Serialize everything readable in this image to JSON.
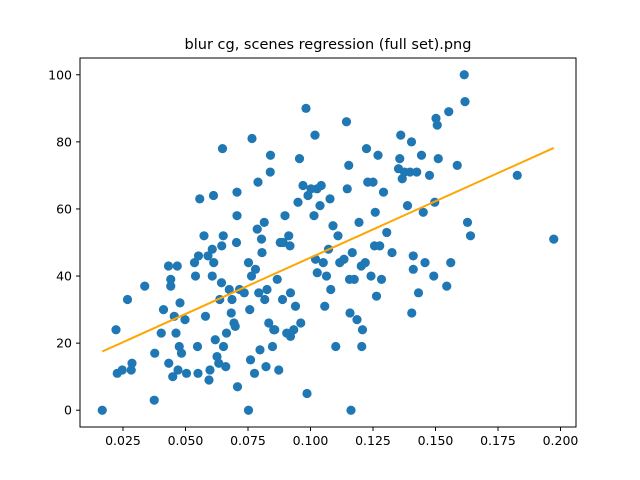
{
  "chart_data": {
    "type": "scatter",
    "title": "blur cg, scenes regression (full set).png",
    "xlabel": "",
    "ylabel": "",
    "xlim": [
      0.0078,
      0.2062
    ],
    "ylim": [
      -5,
      105
    ],
    "x_ticks": [
      "0.025",
      "0.050",
      "0.075",
      "0.100",
      "0.125",
      "0.150",
      "0.175",
      "0.200"
    ],
    "y_ticks": [
      "0",
      "20",
      "40",
      "60",
      "80",
      "100"
    ],
    "grid": false,
    "legend": "none",
    "colors": {
      "points": "#1f77b4",
      "fit": "#ffa500"
    },
    "regression_line": {
      "x": [
        0.0167,
        0.1973
      ],
      "y": [
        17.5,
        78.2
      ]
    },
    "points": [
      {
        "x": 0.0167,
        "y": 0.0
      },
      {
        "x": 0.0222,
        "y": 24.0
      },
      {
        "x": 0.0227,
        "y": 11.0
      },
      {
        "x": 0.0247,
        "y": 12.0
      },
      {
        "x": 0.0268,
        "y": 33.0
      },
      {
        "x": 0.0283,
        "y": 12.0
      },
      {
        "x": 0.0286,
        "y": 14.0
      },
      {
        "x": 0.0337,
        "y": 37.0
      },
      {
        "x": 0.0375,
        "y": 3.0
      },
      {
        "x": 0.0377,
        "y": 17.0
      },
      {
        "x": 0.0403,
        "y": 23.0
      },
      {
        "x": 0.0412,
        "y": 30.0
      },
      {
        "x": 0.0432,
        "y": 43.0
      },
      {
        "x": 0.0433,
        "y": 14.0
      },
      {
        "x": 0.0441,
        "y": 39.0
      },
      {
        "x": 0.0441,
        "y": 37.0
      },
      {
        "x": 0.0449,
        "y": 10.0
      },
      {
        "x": 0.0455,
        "y": 28.0
      },
      {
        "x": 0.0462,
        "y": 23.0
      },
      {
        "x": 0.0467,
        "y": 43.0
      },
      {
        "x": 0.047,
        "y": 12.0
      },
      {
        "x": 0.0475,
        "y": 19.0
      },
      {
        "x": 0.0478,
        "y": 32.0
      },
      {
        "x": 0.0484,
        "y": 17.0
      },
      {
        "x": 0.0498,
        "y": 27.0
      },
      {
        "x": 0.0504,
        "y": 11.0
      },
      {
        "x": 0.0536,
        "y": 44.0
      },
      {
        "x": 0.054,
        "y": 40.0
      },
      {
        "x": 0.0548,
        "y": 19.0
      },
      {
        "x": 0.055,
        "y": 11.0
      },
      {
        "x": 0.0552,
        "y": 46.0
      },
      {
        "x": 0.0557,
        "y": 63.0
      },
      {
        "x": 0.0574,
        "y": 52.0
      },
      {
        "x": 0.058,
        "y": 28.0
      },
      {
        "x": 0.059,
        "y": 46.0
      },
      {
        "x": 0.0594,
        "y": 9.0
      },
      {
        "x": 0.0598,
        "y": 12.0
      },
      {
        "x": 0.0607,
        "y": 48.0
      },
      {
        "x": 0.0607,
        "y": 40.0
      },
      {
        "x": 0.0612,
        "y": 64.0
      },
      {
        "x": 0.0613,
        "y": 44.0
      },
      {
        "x": 0.0619,
        "y": 21.0
      },
      {
        "x": 0.0626,
        "y": 16.0
      },
      {
        "x": 0.0633,
        "y": 14.0
      },
      {
        "x": 0.0637,
        "y": 33.0
      },
      {
        "x": 0.0644,
        "y": 38.0
      },
      {
        "x": 0.0645,
        "y": 49.0
      },
      {
        "x": 0.0648,
        "y": 78.0
      },
      {
        "x": 0.0651,
        "y": 52.0
      },
      {
        "x": 0.0652,
        "y": 19.0
      },
      {
        "x": 0.0661,
        "y": 13.0
      },
      {
        "x": 0.0664,
        "y": 23.0
      },
      {
        "x": 0.0675,
        "y": 36.0
      },
      {
        "x": 0.0683,
        "y": 29.0
      },
      {
        "x": 0.0686,
        "y": 33.0
      },
      {
        "x": 0.0694,
        "y": 26.0
      },
      {
        "x": 0.0699,
        "y": 25.0
      },
      {
        "x": 0.0704,
        "y": 50.0
      },
      {
        "x": 0.0706,
        "y": 65.0
      },
      {
        "x": 0.0706,
        "y": 58.0
      },
      {
        "x": 0.0708,
        "y": 7.0
      },
      {
        "x": 0.0716,
        "y": 36.0
      },
      {
        "x": 0.0735,
        "y": 35.0
      },
      {
        "x": 0.0752,
        "y": 0.0
      },
      {
        "x": 0.0752,
        "y": 44.0
      },
      {
        "x": 0.0757,
        "y": 30.0
      },
      {
        "x": 0.076,
        "y": 15.0
      },
      {
        "x": 0.0764,
        "y": 40.0
      },
      {
        "x": 0.0766,
        "y": 81.0
      },
      {
        "x": 0.0776,
        "y": 11.0
      },
      {
        "x": 0.078,
        "y": 42.0
      },
      {
        "x": 0.0787,
        "y": 54.0
      },
      {
        "x": 0.079,
        "y": 68.0
      },
      {
        "x": 0.0793,
        "y": 35.0
      },
      {
        "x": 0.0798,
        "y": 18.0
      },
      {
        "x": 0.0804,
        "y": 51.0
      },
      {
        "x": 0.0806,
        "y": 47.0
      },
      {
        "x": 0.0815,
        "y": 56.0
      },
      {
        "x": 0.0817,
        "y": 33.0
      },
      {
        "x": 0.0822,
        "y": 13.0
      },
      {
        "x": 0.0826,
        "y": 36.0
      },
      {
        "x": 0.0833,
        "y": 26.0
      },
      {
        "x": 0.0839,
        "y": 71.0
      },
      {
        "x": 0.084,
        "y": 76.0
      },
      {
        "x": 0.0848,
        "y": 19.0
      },
      {
        "x": 0.0853,
        "y": 24.0
      },
      {
        "x": 0.0857,
        "y": 24.0
      },
      {
        "x": 0.0867,
        "y": 39.0
      },
      {
        "x": 0.0873,
        "y": 12.0
      },
      {
        "x": 0.0879,
        "y": 50.0
      },
      {
        "x": 0.0888,
        "y": 33.0
      },
      {
        "x": 0.0891,
        "y": 50.0
      },
      {
        "x": 0.0898,
        "y": 58.0
      },
      {
        "x": 0.0905,
        "y": 23.0
      },
      {
        "x": 0.0913,
        "y": 52.0
      },
      {
        "x": 0.0918,
        "y": 49.0
      },
      {
        "x": 0.092,
        "y": 35.0
      },
      {
        "x": 0.092,
        "y": 22.0
      },
      {
        "x": 0.0933,
        "y": 24.0
      },
      {
        "x": 0.094,
        "y": 31.0
      },
      {
        "x": 0.095,
        "y": 62.0
      },
      {
        "x": 0.0956,
        "y": 75.0
      },
      {
        "x": 0.0961,
        "y": 26.0
      },
      {
        "x": 0.097,
        "y": 67.0
      },
      {
        "x": 0.0982,
        "y": 90.0
      },
      {
        "x": 0.0986,
        "y": 5.0
      },
      {
        "x": 0.099,
        "y": 64.0
      },
      {
        "x": 0.1002,
        "y": 66.0
      },
      {
        "x": 0.1014,
        "y": 58.0
      },
      {
        "x": 0.1018,
        "y": 82.0
      },
      {
        "x": 0.102,
        "y": 45.0
      },
      {
        "x": 0.1026,
        "y": 66.0
      },
      {
        "x": 0.1027,
        "y": 41.0
      },
      {
        "x": 0.1038,
        "y": 61.0
      },
      {
        "x": 0.1043,
        "y": 67.0
      },
      {
        "x": 0.1051,
        "y": 44.0
      },
      {
        "x": 0.1057,
        "y": 31.0
      },
      {
        "x": 0.1064,
        "y": 40.0
      },
      {
        "x": 0.1072,
        "y": 48.0
      },
      {
        "x": 0.1078,
        "y": 63.0
      },
      {
        "x": 0.1081,
        "y": 36.0
      },
      {
        "x": 0.109,
        "y": 55.0
      },
      {
        "x": 0.1101,
        "y": 19.0
      },
      {
        "x": 0.111,
        "y": 52.0
      },
      {
        "x": 0.1117,
        "y": 44.0
      },
      {
        "x": 0.1134,
        "y": 45.0
      },
      {
        "x": 0.1144,
        "y": 86.0
      },
      {
        "x": 0.1147,
        "y": 66.0
      },
      {
        "x": 0.1153,
        "y": 73.0
      },
      {
        "x": 0.1156,
        "y": 39.0
      },
      {
        "x": 0.1158,
        "y": 29.0
      },
      {
        "x": 0.1162,
        "y": 0.0
      },
      {
        "x": 0.1167,
        "y": 47.0
      },
      {
        "x": 0.1175,
        "y": 39.0
      },
      {
        "x": 0.1186,
        "y": 27.0
      },
      {
        "x": 0.1194,
        "y": 56.0
      },
      {
        "x": 0.1203,
        "y": 43.0
      },
      {
        "x": 0.1205,
        "y": 19.0
      },
      {
        "x": 0.1208,
        "y": 24.0
      },
      {
        "x": 0.1219,
        "y": 44.0
      },
      {
        "x": 0.1224,
        "y": 78.0
      },
      {
        "x": 0.1229,
        "y": 68.0
      },
      {
        "x": 0.1242,
        "y": 40.0
      },
      {
        "x": 0.125,
        "y": 68.0
      },
      {
        "x": 0.1256,
        "y": 49.0
      },
      {
        "x": 0.1259,
        "y": 59.0
      },
      {
        "x": 0.1264,
        "y": 34.0
      },
      {
        "x": 0.127,
        "y": 76.0
      },
      {
        "x": 0.1277,
        "y": 49.0
      },
      {
        "x": 0.1284,
        "y": 39.0
      },
      {
        "x": 0.1292,
        "y": 65.0
      },
      {
        "x": 0.1305,
        "y": 53.0
      },
      {
        "x": 0.1326,
        "y": 47.0
      },
      {
        "x": 0.1352,
        "y": 72.0
      },
      {
        "x": 0.1357,
        "y": 75.0
      },
      {
        "x": 0.1361,
        "y": 82.0
      },
      {
        "x": 0.1367,
        "y": 69.0
      },
      {
        "x": 0.1376,
        "y": 71.0
      },
      {
        "x": 0.1388,
        "y": 61.0
      },
      {
        "x": 0.1398,
        "y": 71.0
      },
      {
        "x": 0.1404,
        "y": 80.0
      },
      {
        "x": 0.1405,
        "y": 29.0
      },
      {
        "x": 0.1411,
        "y": 42.0
      },
      {
        "x": 0.1411,
        "y": 46.0
      },
      {
        "x": 0.1425,
        "y": 71.0
      },
      {
        "x": 0.1432,
        "y": 35.0
      },
      {
        "x": 0.1444,
        "y": 76.0
      },
      {
        "x": 0.1451,
        "y": 59.0
      },
      {
        "x": 0.1458,
        "y": 44.0
      },
      {
        "x": 0.1476,
        "y": 70.0
      },
      {
        "x": 0.1493,
        "y": 40.0
      },
      {
        "x": 0.1497,
        "y": 62.0
      },
      {
        "x": 0.1502,
        "y": 87.0
      },
      {
        "x": 0.1507,
        "y": 85.0
      },
      {
        "x": 0.1511,
        "y": 75.0
      },
      {
        "x": 0.1545,
        "y": 37.0
      },
      {
        "x": 0.1553,
        "y": 89.0
      },
      {
        "x": 0.1561,
        "y": 44.0
      },
      {
        "x": 0.1587,
        "y": 73.0
      },
      {
        "x": 0.1615,
        "y": 100.0
      },
      {
        "x": 0.1618,
        "y": 92.0
      },
      {
        "x": 0.1628,
        "y": 56.0
      },
      {
        "x": 0.164,
        "y": 52.0
      },
      {
        "x": 0.1827,
        "y": 70.0
      },
      {
        "x": 0.1973,
        "y": 51.0
      }
    ]
  }
}
